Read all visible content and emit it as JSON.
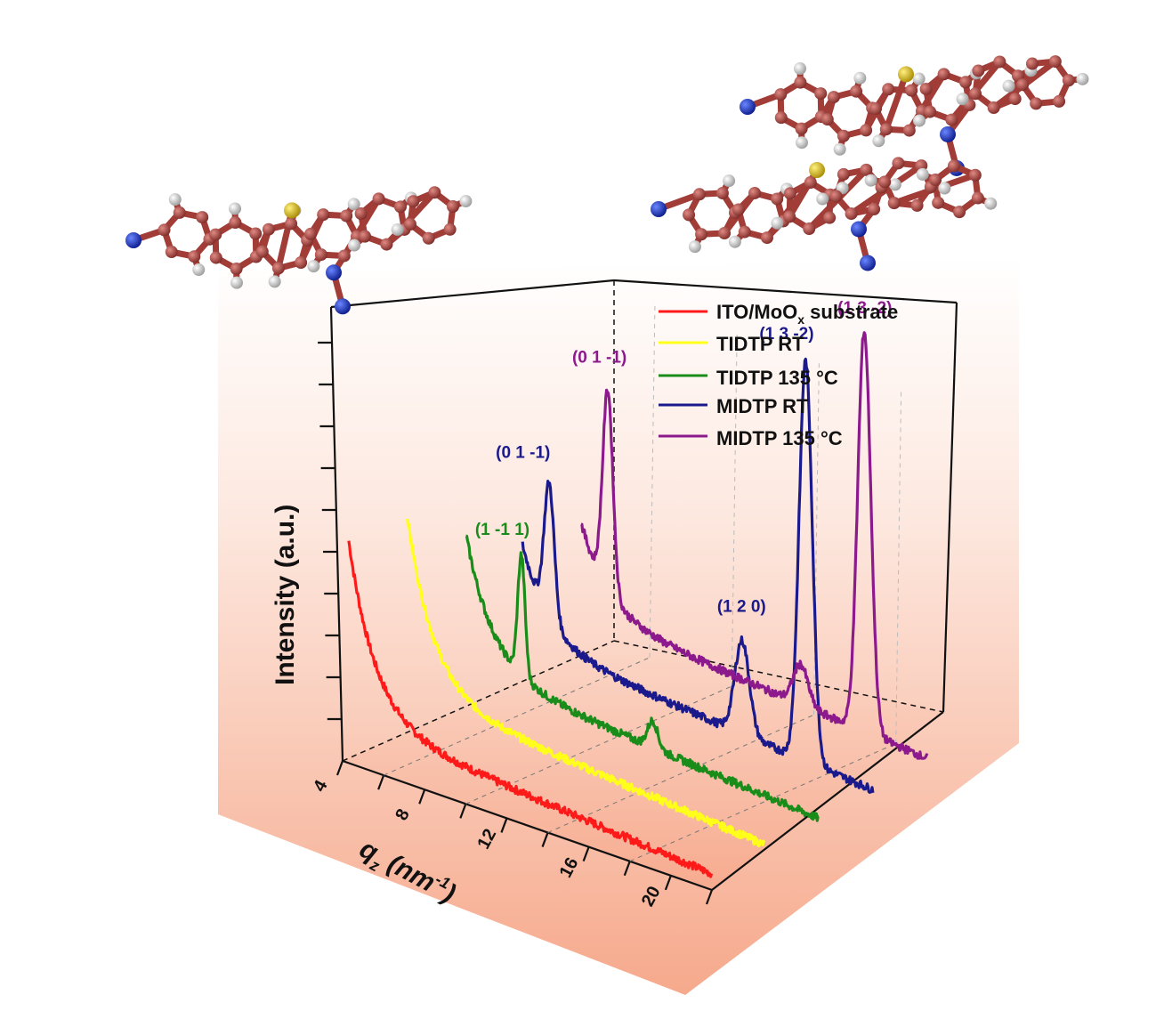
{
  "chart_data": {
    "type": "line",
    "ylabel": "Intensity (a.u.)",
    "xlabel_main": "q",
    "xlabel_sub": "z",
    "xlabel_unit": " (nm",
    "xlabel_sup": "-1",
    "xlabel_close": ")",
    "x_ticks": [
      "4",
      "8",
      "12",
      "16",
      "20"
    ],
    "xlim": [
      4,
      22
    ],
    "grid": true,
    "legend_placement": "top-right",
    "legend": [
      {
        "label": "ITO/MoO",
        "sub": "x",
        "suffix": " substrate",
        "color": "#ff1a1a"
      },
      {
        "label": "TIDTP RT",
        "sub": "",
        "suffix": "",
        "color": "#ffff1a"
      },
      {
        "label": "TIDTP 135 °C",
        "sub": "",
        "suffix": "",
        "color": "#1a8c1a"
      },
      {
        "label": "MIDTP RT",
        "sub": "",
        "suffix": "",
        "color": "#1a1a8c"
      },
      {
        "label": "MIDTP 135 °C",
        "sub": "",
        "suffix": "",
        "color": "#8c1a8c"
      }
    ],
    "series": [
      {
        "name": "ITO/MoOx substrate",
        "color": "#ff1a1a",
        "base": 0.3,
        "decay": 1.6,
        "peaks": []
      },
      {
        "name": "TIDTP RT",
        "color": "#ffff1a",
        "base": 0.35,
        "decay": 1.7,
        "peaks": []
      },
      {
        "name": "TIDTP 135 °C",
        "color": "#1a8c1a",
        "base": 0.35,
        "decay": 1.4,
        "peaks": [
          {
            "x": 7.2,
            "h": 0.9,
            "w": 0.25
          },
          {
            "x": 13.6,
            "h": 0.2,
            "w": 0.35
          }
        ]
      },
      {
        "name": "MIDTP RT",
        "color": "#1a1a8c",
        "base": 0.4,
        "decay": 1.0,
        "peaks": [
          {
            "x": 5.8,
            "h": 1.0,
            "w": 0.35
          },
          {
            "x": 15.2,
            "h": 0.7,
            "w": 0.5
          },
          {
            "x": 18.3,
            "h": 3.0,
            "w": 0.45
          }
        ]
      },
      {
        "name": "MIDTP 135 °C",
        "color": "#8c1a8c",
        "base": 0.5,
        "decay": 1.0,
        "peaks": [
          {
            "x": 5.9,
            "h": 1.5,
            "w": 0.35
          },
          {
            "x": 15.3,
            "h": 0.3,
            "w": 0.5
          },
          {
            "x": 18.4,
            "h": 3.0,
            "w": 0.45
          }
        ]
      }
    ],
    "annotations": [
      {
        "text": "(0 1 -1)",
        "color": "#1a1a8c"
      },
      {
        "text": "(1 -1 1)",
        "color": "#1a8c1a"
      },
      {
        "text": "(0 1 -1)",
        "color": "#8c1a8c"
      },
      {
        "text": "(1 2 0)",
        "color": "#1a1a8c"
      },
      {
        "text": "(1 3 -2)",
        "color": "#1a1a8c"
      },
      {
        "text": "(1 3 -2)",
        "color": "#8c1a8c"
      }
    ]
  },
  "molecules": {
    "atom_colors": {
      "carbon": "#b34a45",
      "hydrogen": "#e8e8e8",
      "nitrogen": "#1a3ad1",
      "sulfur": "#e0c020"
    }
  }
}
